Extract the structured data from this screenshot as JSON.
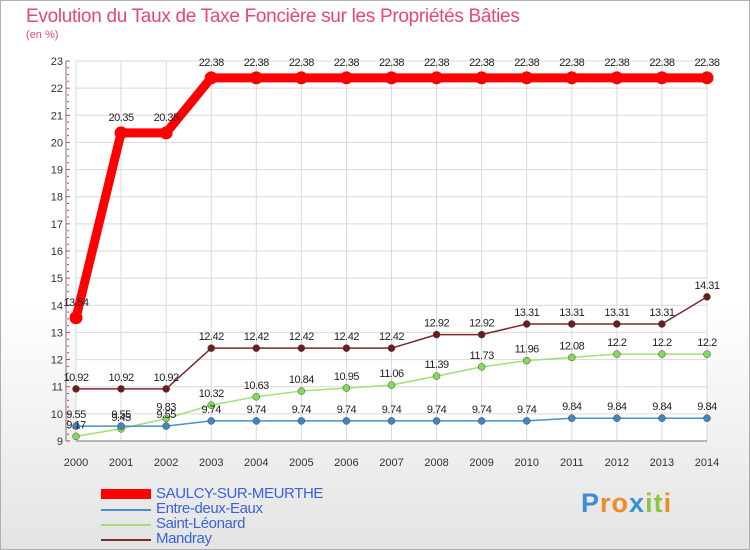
{
  "chart_data": {
    "type": "line",
    "title": "Evolution du Taux de Taxe Foncière sur les Propriétés Bâties",
    "unit_label": "(en %)",
    "xlabel": "",
    "ylabel": "(en %)",
    "ylim": [
      9,
      23
    ],
    "yticks": [
      "9",
      "10",
      "11",
      "12",
      "13",
      "14",
      "15",
      "16",
      "17",
      "18",
      "19",
      "20",
      "21",
      "22",
      "23"
    ],
    "categories": [
      "2000",
      "2001",
      "2002",
      "2003",
      "2004",
      "2005",
      "2006",
      "2007",
      "2008",
      "2009",
      "2010",
      "2011",
      "2012",
      "2013",
      "2014"
    ],
    "grid": true,
    "series": [
      {
        "name": "SAULCY-SUR-MEURTHE",
        "color": "#ff0000",
        "marker_color": "#ff0000",
        "values": [
          13.54,
          20.35,
          20.35,
          22.38,
          22.38,
          22.38,
          22.38,
          22.38,
          22.38,
          22.38,
          22.38,
          22.38,
          22.38,
          22.38,
          22.38
        ],
        "labels": [
          "13.54",
          "20.35",
          "20.35",
          "22.38",
          "22.38",
          "22.38",
          "22.38",
          "22.38",
          "22.38",
          "22.38",
          "22.38",
          "22.38",
          "22.38",
          "22.38",
          "22.38"
        ]
      },
      {
        "name": "Entre-deux-Eaux",
        "color": "#4a8fc7",
        "marker_color": "#3d86c6",
        "values": [
          9.55,
          9.55,
          9.55,
          9.74,
          9.74,
          9.74,
          9.74,
          9.74,
          9.74,
          9.74,
          9.74,
          9.84,
          9.84,
          9.84,
          9.84
        ],
        "labels": [
          "9.55",
          "9.55",
          "9.55",
          "9.74",
          "9.74",
          "9.74",
          "9.74",
          "9.74",
          "9.74",
          "9.74",
          "9.74",
          "9.84",
          "9.84",
          "9.84",
          "9.84"
        ]
      },
      {
        "name": "Saint-Léonard",
        "color": "#9fe07a",
        "marker_color": "#84d95a",
        "values": [
          9.17,
          9.45,
          9.83,
          10.32,
          10.63,
          10.84,
          10.95,
          11.06,
          11.39,
          11.73,
          11.96,
          12.08,
          12.2,
          12.2,
          12.2
        ],
        "labels": [
          "9.17",
          "9.45",
          "9.83",
          "10.32",
          "10.63",
          "10.84",
          "10.95",
          "11.06",
          "11.39",
          "11.73",
          "11.96",
          "12.08",
          "12.2",
          "12.2",
          "12.2"
        ]
      },
      {
        "name": "Mandray",
        "color": "#7a2a2a",
        "marker_color": "#6b1e1e",
        "values": [
          10.92,
          10.92,
          10.92,
          12.42,
          12.42,
          12.42,
          12.42,
          12.42,
          12.92,
          12.92,
          13.31,
          13.31,
          13.31,
          13.31,
          14.31
        ],
        "labels": [
          "10.92",
          "10.92",
          "10.92",
          "12.42",
          "12.42",
          "12.42",
          "12.42",
          "12.42",
          "12.92",
          "12.92",
          "13.31",
          "13.31",
          "13.31",
          "13.31",
          "14.31"
        ]
      }
    ],
    "legend_position": "bottom-left"
  },
  "logo": {
    "letters": [
      "P",
      "r",
      "o",
      "x",
      "i",
      "t",
      "i"
    ],
    "colors": [
      "#3c8fd4",
      "#f08a24",
      "#f08a24",
      "#3c8fd4",
      "#8cc63f",
      "#8cc63f",
      "#f08a24"
    ]
  }
}
